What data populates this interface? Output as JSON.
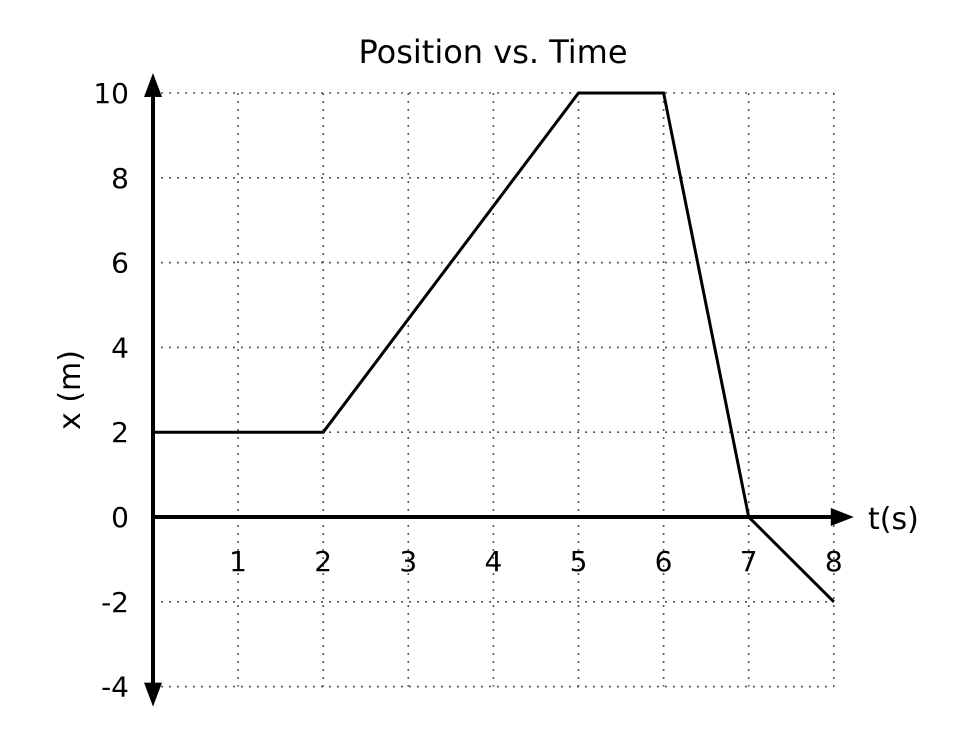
{
  "chart_data": {
    "type": "line",
    "title": "Position vs. Time",
    "xlabel": "t(s)",
    "ylabel": "x (m)",
    "xlim": [
      0,
      8
    ],
    "ylim": [
      -4,
      10
    ],
    "x_ticks": [
      1,
      2,
      3,
      4,
      5,
      6,
      7,
      8
    ],
    "y_ticks": [
      10,
      8,
      6,
      4,
      2,
      0,
      -2,
      -4
    ],
    "grid": true,
    "series": [
      {
        "name": "position",
        "x": [
          0,
          2,
          5,
          6,
          7,
          8
        ],
        "y": [
          2,
          2,
          10,
          10,
          0,
          -2
        ]
      }
    ]
  }
}
